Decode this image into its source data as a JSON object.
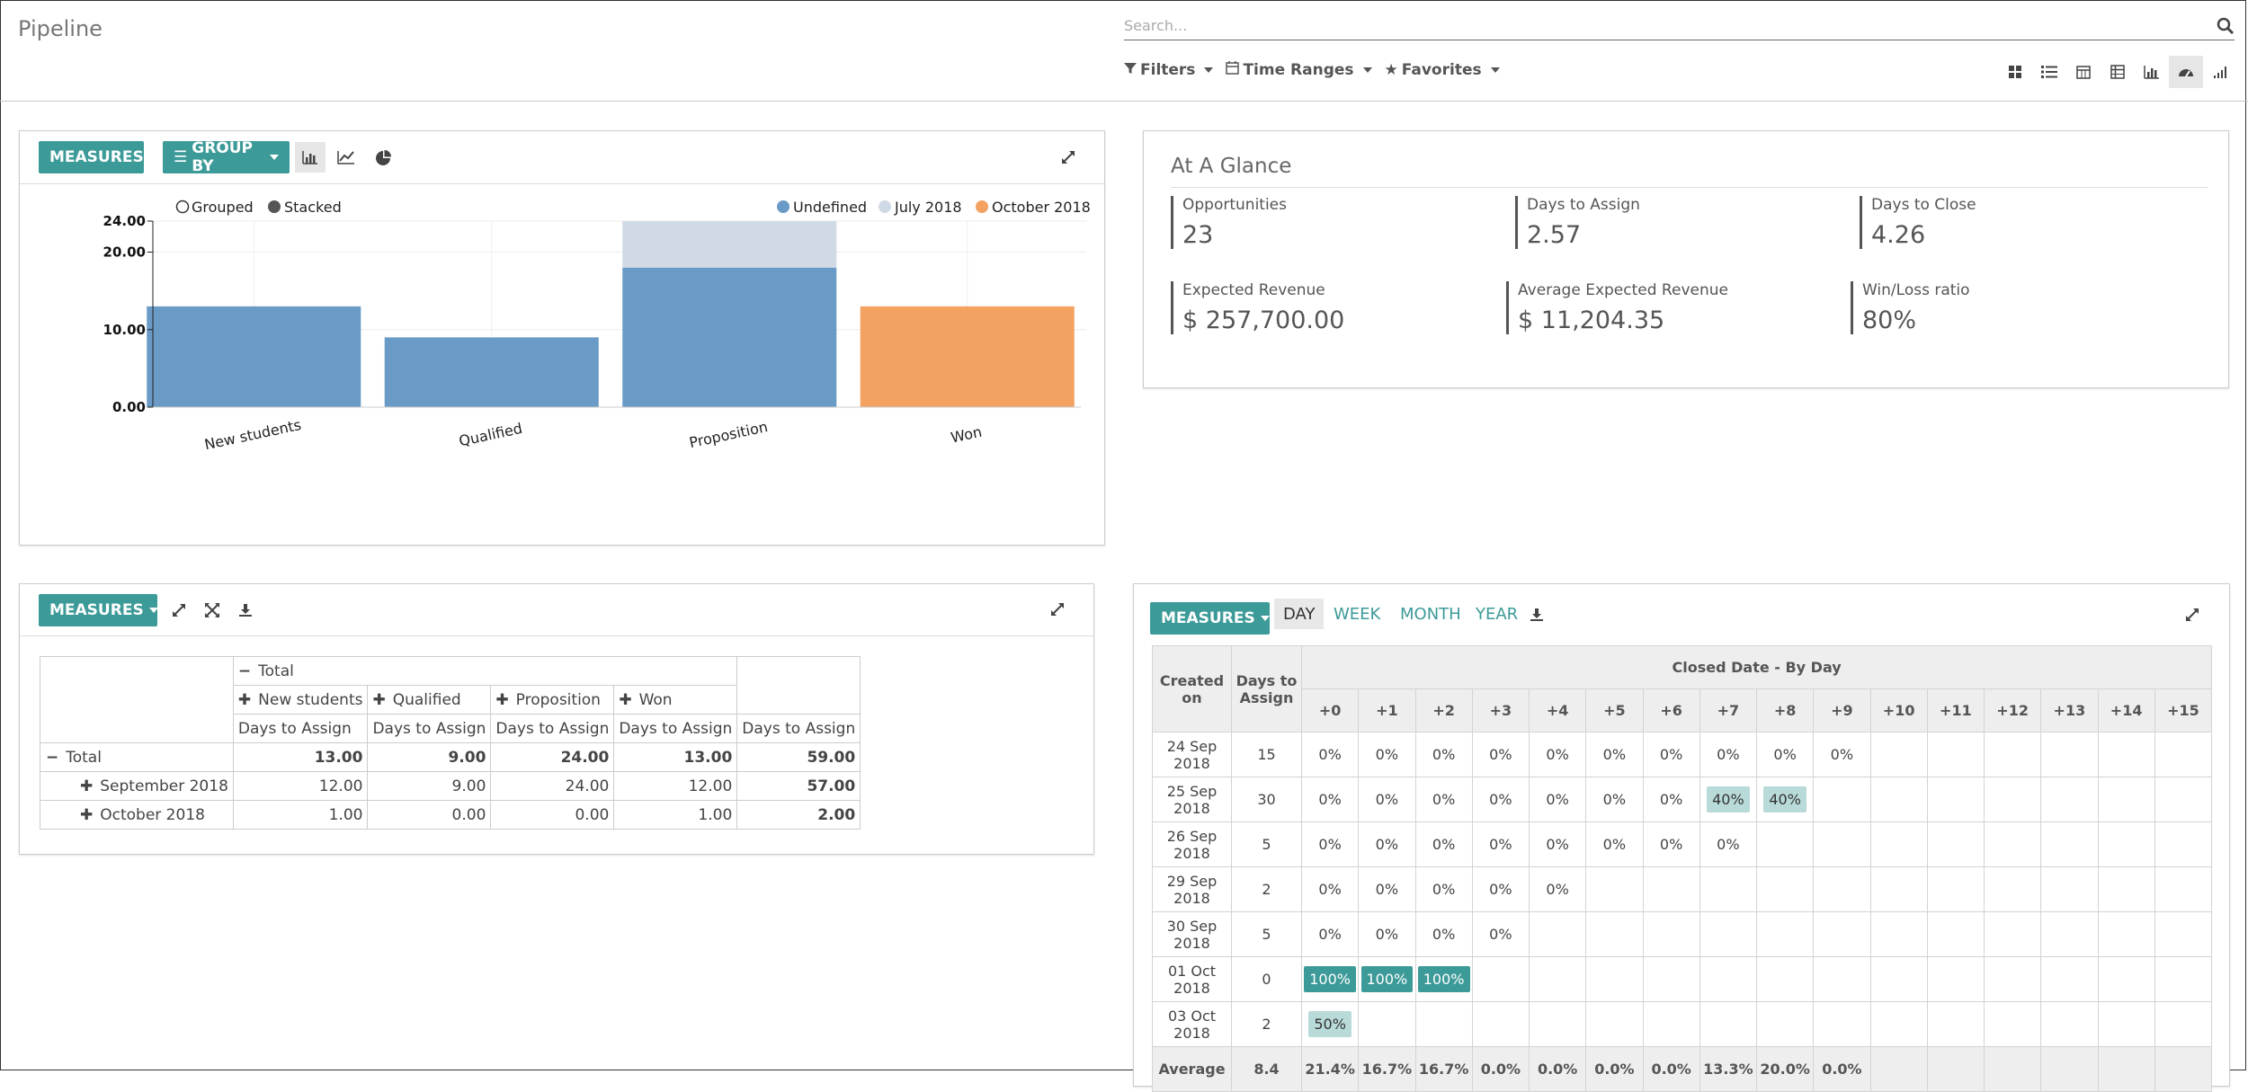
{
  "header": {
    "title": "Pipeline",
    "search_placeholder": "Search...",
    "filters_label": "Filters",
    "time_ranges_label": "Time Ranges",
    "favorites_label": "Favorites"
  },
  "graph_panel": {
    "measures_label": "MEASURES",
    "group_by_label": "GROUP BY",
    "grouped_label": "Grouped",
    "stacked_label": "Stacked"
  },
  "chart_data": {
    "type": "bar",
    "stacked": true,
    "categories": [
      "New students",
      "Qualified",
      "Proposition",
      "Won"
    ],
    "series": [
      {
        "name": "Undefined",
        "color": "#6a9bc7",
        "values": [
          13,
          9,
          18,
          0
        ]
      },
      {
        "name": "July 2018",
        "color": "#d0dae6",
        "values": [
          0,
          0,
          6,
          0
        ]
      },
      {
        "name": "October 2018",
        "color": "#f3a262",
        "values": [
          0,
          0,
          0,
          13
        ]
      }
    ],
    "yticks": [
      "0.00",
      "10.00",
      "20.00",
      "24.00"
    ],
    "ylim": [
      0,
      24
    ],
    "legend_position": "top-right"
  },
  "glance": {
    "title": "At A Glance",
    "kpis": [
      {
        "label": "Opportunities",
        "value": "23"
      },
      {
        "label": "Days to Assign",
        "value": "2.57"
      },
      {
        "label": "Days to Close",
        "value": "4.26"
      },
      {
        "label": "Expected Revenue",
        "value": "$ 257,700.00"
      },
      {
        "label": "Average Expected Revenue",
        "value": "$ 11,204.35"
      },
      {
        "label": "Win/Loss ratio",
        "value": "80%"
      }
    ]
  },
  "pivot": {
    "measures_label": "MEASURES",
    "total_label": "Total",
    "columns": [
      "New students",
      "Qualified",
      "Proposition",
      "Won"
    ],
    "measure": "Days to Assign",
    "rows": [
      {
        "label": "Total",
        "values": [
          "13.00",
          "9.00",
          "24.00",
          "13.00",
          "59.00"
        ]
      },
      {
        "label": "September 2018",
        "values": [
          "12.00",
          "9.00",
          "24.00",
          "12.00",
          "57.00"
        ]
      },
      {
        "label": "October 2018",
        "values": [
          "1.00",
          "0.00",
          "0.00",
          "1.00",
          "2.00"
        ]
      }
    ]
  },
  "cohort": {
    "measures_label": "MEASURES",
    "tabs": [
      "DAY",
      "WEEK",
      "MONTH",
      "YEAR"
    ],
    "created_on_header": "Created on",
    "days_to_assign_header": "Days to Assign",
    "closed_date_header": "Closed Date - By Day",
    "offsets": [
      "+0",
      "+1",
      "+2",
      "+3",
      "+4",
      "+5",
      "+6",
      "+7",
      "+8",
      "+9",
      "+10",
      "+11",
      "+12",
      "+13",
      "+14",
      "+15"
    ],
    "rows": [
      {
        "date": "24 Sep 2018",
        "days": "15",
        "cells": [
          "0%",
          "0%",
          "0%",
          "0%",
          "0%",
          "0%",
          "0%",
          "0%",
          "0%",
          "0%",
          "",
          "",
          "",
          "",
          "",
          ""
        ]
      },
      {
        "date": "25 Sep 2018",
        "days": "30",
        "cells": [
          "0%",
          "0%",
          "0%",
          "0%",
          "0%",
          "0%",
          "0%",
          "40%",
          "40%",
          "",
          "",
          "",
          "",
          "",
          "",
          ""
        ]
      },
      {
        "date": "26 Sep 2018",
        "days": "5",
        "cells": [
          "0%",
          "0%",
          "0%",
          "0%",
          "0%",
          "0%",
          "0%",
          "0%",
          "",
          "",
          "",
          "",
          "",
          "",
          "",
          ""
        ]
      },
      {
        "date": "29 Sep 2018",
        "days": "2",
        "cells": [
          "0%",
          "0%",
          "0%",
          "0%",
          "0%",
          "",
          "",
          "",
          "",
          "",
          "",
          "",
          "",
          "",
          "",
          ""
        ]
      },
      {
        "date": "30 Sep 2018",
        "days": "5",
        "cells": [
          "0%",
          "0%",
          "0%",
          "0%",
          "",
          "",
          "",
          "",
          "",
          "",
          "",
          "",
          "",
          "",
          "",
          ""
        ]
      },
      {
        "date": "01 Oct 2018",
        "days": "0",
        "cells": [
          "100%",
          "100%",
          "100%",
          "",
          "",
          "",
          "",
          "",
          "",
          "",
          "",
          "",
          "",
          "",
          "",
          ""
        ]
      },
      {
        "date": "03 Oct 2018",
        "days": "2",
        "cells": [
          "50%",
          "",
          "",
          "",
          "",
          "",
          "",
          "",
          "",
          "",
          "",
          "",
          "",
          "",
          "",
          ""
        ]
      }
    ],
    "average": {
      "label": "Average",
      "days": "8.4",
      "cells": [
        "21.4%",
        "16.7%",
        "16.7%",
        "0.0%",
        "0.0%",
        "0.0%",
        "0.0%",
        "13.3%",
        "20.0%",
        "0.0%",
        "",
        "",
        "",
        "",
        "",
        ""
      ]
    }
  }
}
